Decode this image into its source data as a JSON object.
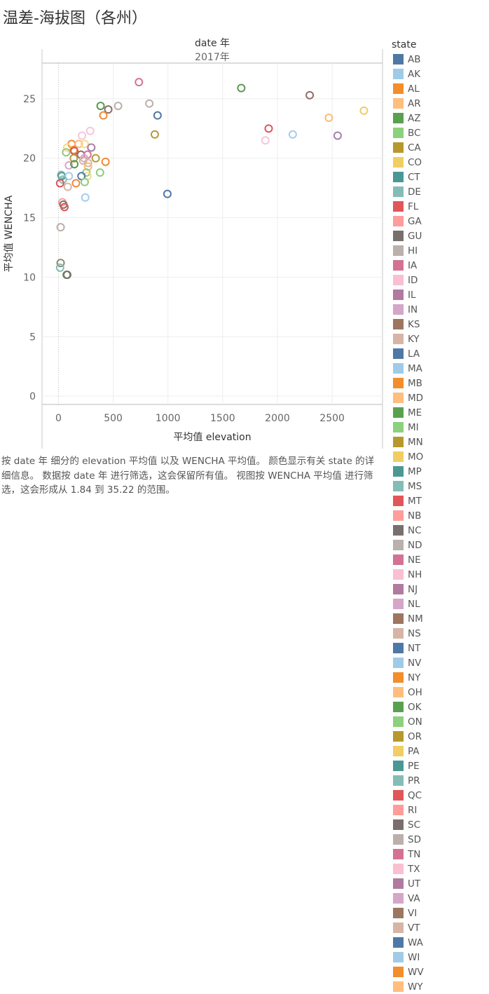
{
  "page": {
    "title": "温差-海拔图（各州）"
  },
  "caption": "按 date 年 细分的 elevation 平均值 以及 WENCHA 平均值。 颜色显示有关 state 的详细信息。 数据按 date 年 进行筛选，这会保留所有值。 视图按 WENCHA 平均值 进行筛选，这会形成从 1.84 到 35.22 的范围。",
  "chart_data": {
    "type": "scatter",
    "title": "温差-海拔图（各州）",
    "column_header_title": "date 年",
    "column_header_value": "2017年",
    "xlabel": "平均值 elevation",
    "ylabel": "平均值 WENCHA",
    "xlim": [
      -150,
      2960
    ],
    "ylim": [
      -0.7,
      28
    ],
    "xticks": [
      0,
      500,
      1000,
      1500,
      2000,
      2500
    ],
    "yticks": [
      0,
      5,
      10,
      15,
      20,
      25
    ],
    "grid": true,
    "marker": "hollow-circle",
    "legend": {
      "title": "state",
      "position": "right"
    },
    "points": [
      {
        "x": 735,
        "y": 26.4,
        "color": "#D4739A"
      },
      {
        "x": 1670,
        "y": 25.9,
        "color": "#5A9A4F"
      },
      {
        "x": 2295,
        "y": 25.3,
        "color": "#8E6E66"
      },
      {
        "x": 830,
        "y": 24.6,
        "color": "#BCAFAB"
      },
      {
        "x": 385,
        "y": 24.4,
        "color": "#5A9A4F"
      },
      {
        "x": 545,
        "y": 24.4,
        "color": "#BCAFAB"
      },
      {
        "x": 455,
        "y": 24.1,
        "color": "#8E6E66"
      },
      {
        "x": 2790,
        "y": 24.0,
        "color": "#EFCB6A"
      },
      {
        "x": 905,
        "y": 23.6,
        "color": "#5278A8"
      },
      {
        "x": 410,
        "y": 23.6,
        "color": "#F08A3A"
      },
      {
        "x": 2470,
        "y": 23.4,
        "color": "#F8BB79"
      },
      {
        "x": 1920,
        "y": 22.5,
        "color": "#DC555B"
      },
      {
        "x": 290,
        "y": 22.3,
        "color": "#F7C5D7"
      },
      {
        "x": 880,
        "y": 22.0,
        "color": "#B59A3D"
      },
      {
        "x": 2140,
        "y": 22.0,
        "color": "#A7CBE6"
      },
      {
        "x": 2550,
        "y": 21.9,
        "color": "#A57FA7"
      },
      {
        "x": 215,
        "y": 21.9,
        "color": "#F7C5D7"
      },
      {
        "x": 1890,
        "y": 21.5,
        "color": "#F7C5D7"
      },
      {
        "x": 120,
        "y": 21.2,
        "color": "#F08A3A"
      },
      {
        "x": 185,
        "y": 21.2,
        "color": "#F8BB79"
      },
      {
        "x": 240,
        "y": 21.2,
        "color": "#F8D98A"
      },
      {
        "x": 300,
        "y": 20.9,
        "color": "#A57FA7"
      },
      {
        "x": 80,
        "y": 20.9,
        "color": "#F8D98A"
      },
      {
        "x": 140,
        "y": 20.7,
        "color": "#F08A3A"
      },
      {
        "x": 145,
        "y": 20.6,
        "color": "#DC555B"
      },
      {
        "x": 70,
        "y": 20.5,
        "color": "#8FCB80"
      },
      {
        "x": 205,
        "y": 20.3,
        "color": "#8E6E66"
      },
      {
        "x": 265,
        "y": 20.3,
        "color": "#D4739A"
      },
      {
        "x": 235,
        "y": 20.0,
        "color": "#D8A7CA"
      },
      {
        "x": 140,
        "y": 20.0,
        "color": "#B59A3D"
      },
      {
        "x": 340,
        "y": 20.0,
        "color": "#B59A3D"
      },
      {
        "x": 225,
        "y": 19.8,
        "color": "#D7B5A6"
      },
      {
        "x": 430,
        "y": 19.7,
        "color": "#F08A3A"
      },
      {
        "x": 95,
        "y": 19.4,
        "color": "#D8A7CA"
      },
      {
        "x": 270,
        "y": 19.6,
        "color": "#D7B5A6"
      },
      {
        "x": 270,
        "y": 19.3,
        "color": "#F8BB79"
      },
      {
        "x": 145,
        "y": 19.5,
        "color": "#5A9A4F"
      },
      {
        "x": 255,
        "y": 18.8,
        "color": "#8FCB80"
      },
      {
        "x": 380,
        "y": 18.8,
        "color": "#8FCB80"
      },
      {
        "x": 265,
        "y": 18.5,
        "color": "#F8D98A"
      },
      {
        "x": 25,
        "y": 18.6,
        "color": "#86BCB6"
      },
      {
        "x": 30,
        "y": 18.5,
        "color": "#4E9F9A"
      },
      {
        "x": 95,
        "y": 18.5,
        "color": "#A7CBE6"
      },
      {
        "x": 210,
        "y": 18.5,
        "color": "#5278A8"
      },
      {
        "x": 40,
        "y": 18.2,
        "color": "#86BCB6"
      },
      {
        "x": 15,
        "y": 17.9,
        "color": "#DC555B"
      },
      {
        "x": 160,
        "y": 17.9,
        "color": "#F08A3A"
      },
      {
        "x": 240,
        "y": 18.0,
        "color": "#8FCB80"
      },
      {
        "x": 85,
        "y": 17.6,
        "color": "#D7B5A6"
      },
      {
        "x": 995,
        "y": 17.0,
        "color": "#5278A8"
      },
      {
        "x": 245,
        "y": 16.7,
        "color": "#A7CBE6"
      },
      {
        "x": 35,
        "y": 16.3,
        "color": "#FF9D9A"
      },
      {
        "x": 45,
        "y": 16.1,
        "color": "#79706E"
      },
      {
        "x": 55,
        "y": 15.9,
        "color": "#DC555B"
      },
      {
        "x": 20,
        "y": 14.2,
        "color": "#BCAFAB"
      },
      {
        "x": 20,
        "y": 11.2,
        "color": "#8E8A6E"
      },
      {
        "x": 15,
        "y": 10.8,
        "color": "#86BCB6"
      },
      {
        "x": 75,
        "y": 10.2,
        "color": "#5A9A4F"
      },
      {
        "x": 80,
        "y": 10.2,
        "color": "#79706E"
      }
    ]
  },
  "legend_items": [
    {
      "label": "AB",
      "color": "#4E79A7"
    },
    {
      "label": "AK",
      "color": "#A0CBE8"
    },
    {
      "label": "AL",
      "color": "#F28E2B"
    },
    {
      "label": "AR",
      "color": "#FFBE7D"
    },
    {
      "label": "AZ",
      "color": "#59A14F"
    },
    {
      "label": "BC",
      "color": "#8CD17D"
    },
    {
      "label": "CA",
      "color": "#B6992D"
    },
    {
      "label": "CO",
      "color": "#F1CE63"
    },
    {
      "label": "CT",
      "color": "#499894"
    },
    {
      "label": "DE",
      "color": "#86BCB6"
    },
    {
      "label": "FL",
      "color": "#E15759"
    },
    {
      "label": "GA",
      "color": "#FF9D9A"
    },
    {
      "label": "GU",
      "color": "#79706E"
    },
    {
      "label": "HI",
      "color": "#BAB0AC"
    },
    {
      "label": "IA",
      "color": "#D37295"
    },
    {
      "label": "ID",
      "color": "#FABFD2"
    },
    {
      "label": "IL",
      "color": "#B07AA1"
    },
    {
      "label": "IN",
      "color": "#D4A6C8"
    },
    {
      "label": "KS",
      "color": "#9D7660"
    },
    {
      "label": "KY",
      "color": "#D7B5A6"
    },
    {
      "label": "LA",
      "color": "#4E79A7"
    },
    {
      "label": "MA",
      "color": "#A0CBE8"
    },
    {
      "label": "MB",
      "color": "#F28E2B"
    },
    {
      "label": "MD",
      "color": "#FFBE7D"
    },
    {
      "label": "ME",
      "color": "#59A14F"
    },
    {
      "label": "MI",
      "color": "#8CD17D"
    },
    {
      "label": "MN",
      "color": "#B6992D"
    },
    {
      "label": "MO",
      "color": "#F1CE63"
    },
    {
      "label": "MP",
      "color": "#499894"
    },
    {
      "label": "MS",
      "color": "#86BCB6"
    },
    {
      "label": "MT",
      "color": "#E15759"
    },
    {
      "label": "NB",
      "color": "#FF9D9A"
    },
    {
      "label": "NC",
      "color": "#79706E"
    },
    {
      "label": "ND",
      "color": "#BAB0AC"
    },
    {
      "label": "NE",
      "color": "#D37295"
    },
    {
      "label": "NH",
      "color": "#FABFD2"
    },
    {
      "label": "NJ",
      "color": "#B07AA1"
    },
    {
      "label": "NL",
      "color": "#D4A6C8"
    },
    {
      "label": "NM",
      "color": "#9D7660"
    },
    {
      "label": "NS",
      "color": "#D7B5A6"
    },
    {
      "label": "NT",
      "color": "#4E79A7"
    },
    {
      "label": "NV",
      "color": "#A0CBE8"
    },
    {
      "label": "NY",
      "color": "#F28E2B"
    },
    {
      "label": "OH",
      "color": "#FFBE7D"
    },
    {
      "label": "OK",
      "color": "#59A14F"
    },
    {
      "label": "ON",
      "color": "#8CD17D"
    },
    {
      "label": "OR",
      "color": "#B6992D"
    },
    {
      "label": "PA",
      "color": "#F1CE63"
    },
    {
      "label": "PE",
      "color": "#499894"
    },
    {
      "label": "PR",
      "color": "#86BCB6"
    },
    {
      "label": "QC",
      "color": "#E15759"
    },
    {
      "label": "RI",
      "color": "#FF9D9A"
    },
    {
      "label": "SC",
      "color": "#79706E"
    },
    {
      "label": "SD",
      "color": "#BAB0AC"
    },
    {
      "label": "TN",
      "color": "#D37295"
    },
    {
      "label": "TX",
      "color": "#FABFD2"
    },
    {
      "label": "UT",
      "color": "#B07AA1"
    },
    {
      "label": "VA",
      "color": "#D4A6C8"
    },
    {
      "label": "VI",
      "color": "#9D7660"
    },
    {
      "label": "VT",
      "color": "#D7B5A6"
    },
    {
      "label": "WA",
      "color": "#4E79A7"
    },
    {
      "label": "WI",
      "color": "#A0CBE8"
    },
    {
      "label": "WV",
      "color": "#F28E2B"
    },
    {
      "label": "WY",
      "color": "#FFBE7D"
    }
  ]
}
